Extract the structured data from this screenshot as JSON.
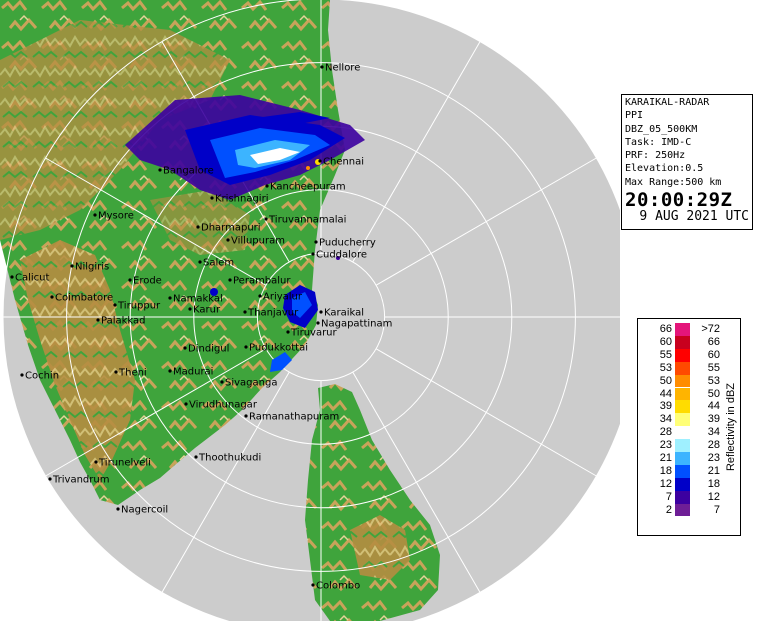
{
  "radar_info": {
    "station": "KARAIKAL-RADAR",
    "product": "PPI",
    "product_code": "DBZ_05_500KM",
    "task": "Task: IMD-C",
    "prf": "PRF: 250Hz",
    "elevation": "Elevation:0.5",
    "max_range": "Max Range:500 km",
    "time": "20:00:29Z",
    "date": "9 AUG 2021 UTC"
  },
  "legend": {
    "title": "Reflectivity in dBZ",
    "rows": [
      {
        "left": "66",
        "right": ">72",
        "color": "#e4157a"
      },
      {
        "left": "60",
        "right": "66",
        "color": "#c8001e"
      },
      {
        "left": "55",
        "right": "60",
        "color": "#ff0000"
      },
      {
        "left": "53",
        "right": "55",
        "color": "#ff4a00"
      },
      {
        "left": "50",
        "right": "53",
        "color": "#ff8c00"
      },
      {
        "left": "44",
        "right": "50",
        "color": "#ffb400"
      },
      {
        "left": "39",
        "right": "44",
        "color": "#ffdc00"
      },
      {
        "left": "34",
        "right": "39",
        "color": "#ffff78"
      },
      {
        "left": "28",
        "right": "34",
        "color": "#ffffff"
      },
      {
        "left": "23",
        "right": "28",
        "color": "#9ff0ff"
      },
      {
        "left": "21",
        "right": "23",
        "color": "#3cb4ff"
      },
      {
        "left": "18",
        "right": "21",
        "color": "#0050ff"
      },
      {
        "left": "12",
        "right": "18",
        "color": "#0000c8"
      },
      {
        "left": "7",
        "right": "12",
        "color": "#3c00a0"
      },
      {
        "left": "2",
        "right": "7",
        "color": "#6e1e96"
      }
    ]
  },
  "cities": [
    {
      "name": "Nellore"
    },
    {
      "name": "Chennai"
    },
    {
      "name": "Bangalore"
    },
    {
      "name": "Kancheepuram"
    },
    {
      "name": "Krishnagiri"
    },
    {
      "name": "Tiruvannamalai"
    },
    {
      "name": "Mysore"
    },
    {
      "name": "Dharmapuri"
    },
    {
      "name": "Villupuram"
    },
    {
      "name": "Puducherry"
    },
    {
      "name": "Cuddalore"
    },
    {
      "name": "Salem"
    },
    {
      "name": "Calicut"
    },
    {
      "name": "Nilgiris"
    },
    {
      "name": "Erode"
    },
    {
      "name": "Perambalur"
    },
    {
      "name": "Ariyalur"
    },
    {
      "name": "Coimbatore"
    },
    {
      "name": "Tiruppur"
    },
    {
      "name": "Namakkal"
    },
    {
      "name": "Karur"
    },
    {
      "name": "Thanjavur"
    },
    {
      "name": "Karaikal"
    },
    {
      "name": "Nagapattinam"
    },
    {
      "name": "Palakkad"
    },
    {
      "name": "Tiruvarur"
    },
    {
      "name": "Dindigul"
    },
    {
      "name": "Pudukkottai"
    },
    {
      "name": "Cochin"
    },
    {
      "name": "Theni"
    },
    {
      "name": "Madurai"
    },
    {
      "name": "Sivaganga"
    },
    {
      "name": "Virudhunagar"
    },
    {
      "name": "Ramanathapuram"
    },
    {
      "name": "Tirunelveli"
    },
    {
      "name": "Thoothukudi"
    },
    {
      "name": "Trivandrum"
    },
    {
      "name": "Nagercoil"
    },
    {
      "name": "Colombo"
    }
  ],
  "colors": {
    "sea": "#cccccc",
    "outside_range": "#ffffff",
    "land_low": "#3fa43c",
    "land_high": "#c8a050",
    "range_ring": "#ffffff"
  }
}
